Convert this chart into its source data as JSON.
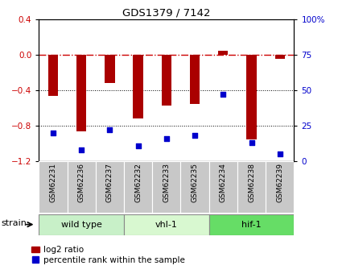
{
  "title": "GDS1379 / 7142",
  "samples": [
    "GSM62231",
    "GSM62236",
    "GSM62237",
    "GSM62232",
    "GSM62233",
    "GSM62235",
    "GSM62234",
    "GSM62238",
    "GSM62239"
  ],
  "log2_ratio": [
    -0.46,
    -0.86,
    -0.32,
    -0.72,
    -0.57,
    -0.55,
    0.05,
    -0.95,
    -0.04
  ],
  "percentile_rank": [
    20,
    8,
    22,
    11,
    16,
    18,
    47,
    13,
    5
  ],
  "ylim_left": [
    -1.2,
    0.4
  ],
  "ylim_right": [
    0,
    100
  ],
  "yticks_left": [
    -1.2,
    -0.8,
    -0.4,
    0.0,
    0.4
  ],
  "yticks_right": [
    0,
    25,
    50,
    75,
    100
  ],
  "ytick_labels_right": [
    "0",
    "25",
    "50",
    "75",
    "100%"
  ],
  "groups": [
    {
      "label": "wild type",
      "start": 0,
      "end": 3,
      "color": "#c8f0c8"
    },
    {
      "label": "vhl-1",
      "start": 3,
      "end": 6,
      "color": "#d8f8d0"
    },
    {
      "label": "hif-1",
      "start": 6,
      "end": 9,
      "color": "#66dd66"
    }
  ],
  "bar_color": "#aa0000",
  "dot_color": "#0000cc",
  "bar_width": 0.35,
  "background_color": "#ffffff",
  "plot_bg": "#ffffff",
  "legend_bar_label": "log2 ratio",
  "legend_dot_label": "percentile rank within the sample",
  "strain_label": "strain",
  "sample_box_color": "#c8c8c8",
  "group_border_color": "#888888"
}
